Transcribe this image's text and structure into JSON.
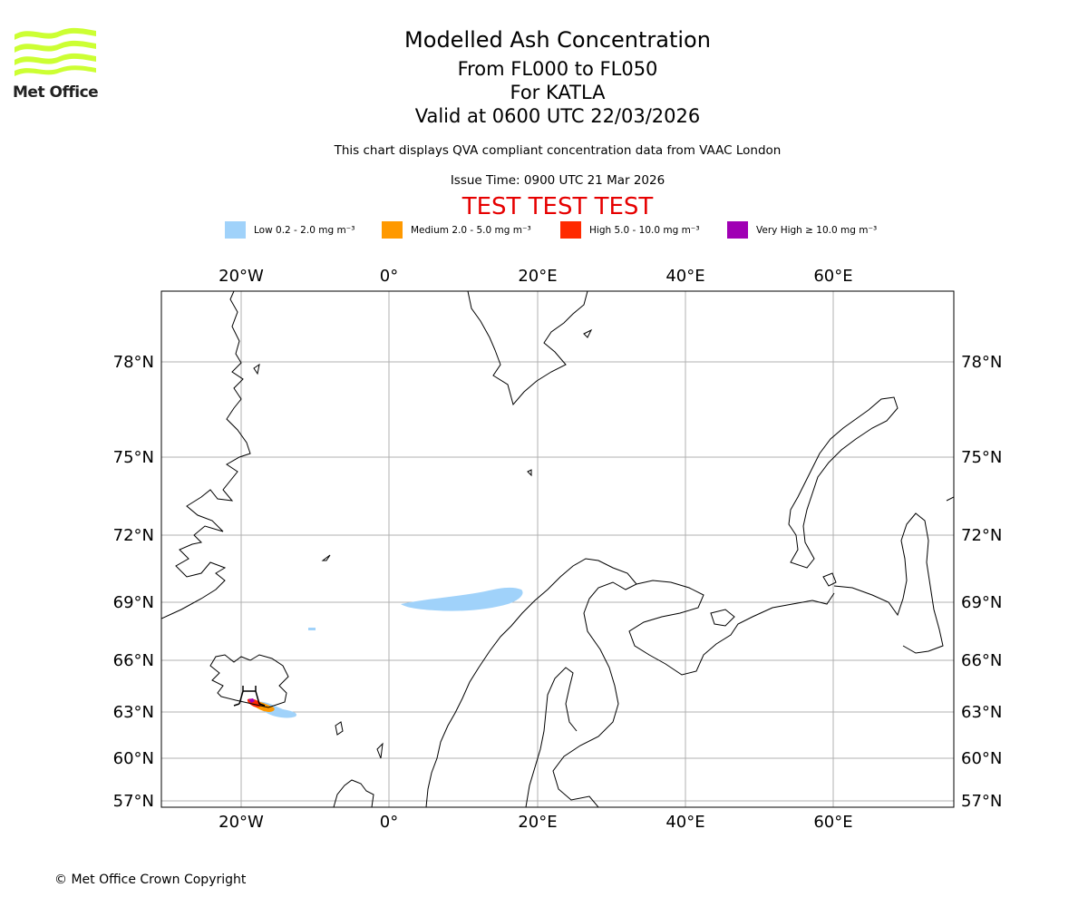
{
  "logo": {
    "text": "Met Office",
    "icon": "met-office-wave-logo",
    "color": "#ccff33"
  },
  "header": {
    "title": "Modelled Ash Concentration",
    "flight_levels": "From FL000 to FL050",
    "volcano": "For KATLA",
    "valid_time": "Valid at 0600 UTC 22/03/2026",
    "description": "This chart displays QVA compliant concentration data from VAAC London",
    "issue_time": "Issue Time: 0900 UTC 21 Mar 2026",
    "test_banner": "TEST TEST TEST"
  },
  "legend": [
    {
      "label": "Low 0.2 - 2.0 mg m⁻³",
      "color": "#a0d2fa"
    },
    {
      "label": "Medium 2.0 - 5.0 mg m⁻³",
      "color": "#ff9900"
    },
    {
      "label": "High 5.0 - 10.0 mg m⁻³",
      "color": "#ff2a00"
    },
    {
      "label": "Very High ≥ 10.0 mg m⁻³",
      "color": "#a000b4"
    }
  ],
  "map": {
    "longitude_labels": [
      "20°W",
      "0°",
      "20°E",
      "40°E",
      "60°E"
    ],
    "latitude_labels": [
      "78°N",
      "75°N",
      "72°N",
      "69°N",
      "66°N",
      "63°N",
      "60°N",
      "57°N"
    ],
    "gridline_color": "#b0b0b0",
    "coastline_color": "#000000",
    "volcano_marker_color": "#000000"
  },
  "footer": {
    "copyright": "© Met Office Crown Copyright"
  }
}
